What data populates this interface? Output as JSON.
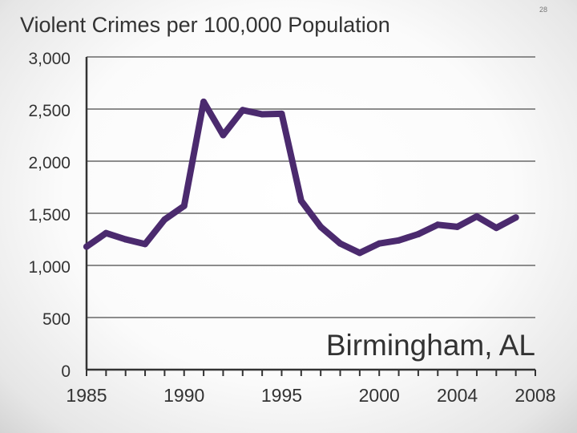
{
  "slide_number": "28",
  "chart_data": {
    "type": "line",
    "title": "Violent Crimes per 100,000 Population",
    "annotation": "Birmingham, AL",
    "xlabel": "",
    "ylabel": "",
    "x": [
      1985,
      1986,
      1987,
      1988,
      1989,
      1990,
      1991,
      1992,
      1993,
      1994,
      1995,
      1996,
      1997,
      1998,
      1999,
      2000,
      2001,
      2002,
      2003,
      2004,
      2005,
      2006,
      2007
    ],
    "series": [
      {
        "values": [
          1180,
          1310,
          1250,
          1205,
          1440,
          1570,
          2570,
          2250,
          2490,
          2450,
          2455,
          1620,
          1370,
          1210,
          1120,
          1210,
          1240,
          1300,
          1390,
          1370,
          1470,
          1360,
          1460
        ]
      }
    ],
    "xlim": [
      1985,
      2008
    ],
    "ylim": [
      0,
      3000
    ],
    "y_ticks": [
      0,
      500,
      1000,
      1500,
      2000,
      2500,
      3000
    ],
    "y_tick_labels": [
      "0",
      "500",
      "1,000",
      "1,500",
      "2,000",
      "2,500",
      "3,000"
    ],
    "x_tick_labels": [
      {
        "value": 1985,
        "label": "1985"
      },
      {
        "value": 1990,
        "label": "1990"
      },
      {
        "value": 1995,
        "label": "1995"
      },
      {
        "value": 2000,
        "label": "2000"
      },
      {
        "value": 2004,
        "label": "2004"
      },
      {
        "value": 2008,
        "label": "2008"
      }
    ],
    "grid": true,
    "colors": {
      "line": "#4b2a6e",
      "grid": "#8c8c8c",
      "axis": "#333333",
      "text": "#333333"
    }
  }
}
